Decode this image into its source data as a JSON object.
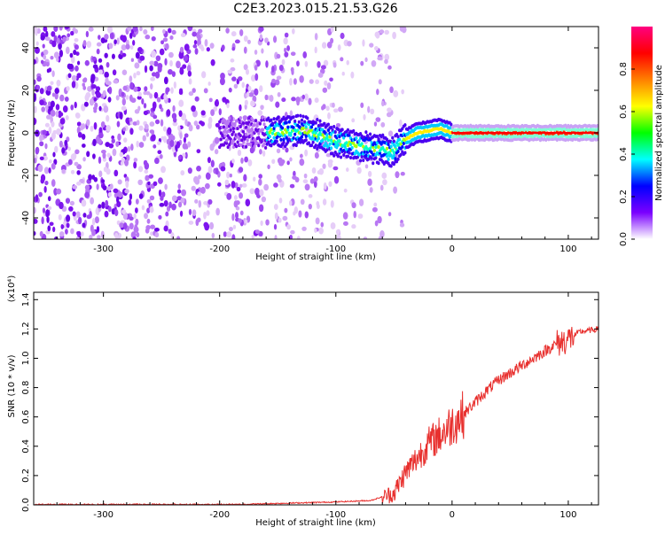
{
  "title": "C2E3.2023.015.21.53.G26",
  "chart_data": [
    {
      "type": "heatmap",
      "xlabel": "Height of straight line (km)",
      "ylabel": "Frequency (Hz)",
      "xlim": [
        -360,
        126
      ],
      "ylim": [
        -50,
        50
      ],
      "xticks": [
        -300,
        -200,
        -100,
        0,
        100
      ],
      "yticks": [
        -40,
        -20,
        0,
        20,
        40
      ],
      "colorbar": {
        "label": "Normalized spectral amplitude",
        "range": [
          0,
          1
        ],
        "ticks": [
          0.0,
          0.2,
          0.4,
          0.6,
          0.8
        ],
        "colors": [
          "#ffffff",
          "#7a00ff",
          "#0000ff",
          "#00ffff",
          "#00ff00",
          "#ffff00",
          "#ff8000",
          "#ff0000",
          "#ff0080"
        ]
      },
      "ridge": {
        "x": [
          -155,
          -140,
          -125,
          -110,
          -100,
          -90,
          -80,
          -70,
          -60,
          -50,
          -45,
          -40,
          -30,
          -20,
          -10,
          0,
          50,
          126
        ],
        "y": [
          0,
          1,
          1,
          -2,
          -4,
          -5,
          -6,
          -7,
          -8,
          -9,
          -5,
          -3,
          0,
          1,
          2,
          0,
          0,
          0
        ]
      },
      "grid": false
    },
    {
      "type": "line",
      "xlabel": "Height of straight line (km)",
      "ylabel": "SNR (10 * v/v)",
      "yunit": "(x10⁴)",
      "xlim": [
        -360,
        126
      ],
      "ylim": [
        0,
        1.45
      ],
      "xticks": [
        -300,
        -200,
        -100,
        0,
        100
      ],
      "yticks": [
        0.0,
        0.2,
        0.4,
        0.6,
        0.8,
        1.0,
        1.2,
        1.4
      ],
      "series": [
        {
          "color": "#e8302e",
          "x": [
            -360,
            -300,
            -200,
            -150,
            -100,
            -70,
            -50,
            -40,
            -30,
            -20,
            -10,
            0,
            10,
            20,
            30,
            40,
            60,
            80,
            90,
            100,
            110,
            126
          ],
          "y": [
            0.0,
            0.0,
            0.0,
            0.01,
            0.02,
            0.03,
            0.08,
            0.22,
            0.32,
            0.42,
            0.48,
            0.55,
            0.62,
            0.7,
            0.78,
            0.85,
            0.95,
            1.05,
            1.1,
            1.13,
            1.18,
            1.2
          ]
        }
      ],
      "grid": false
    }
  ]
}
